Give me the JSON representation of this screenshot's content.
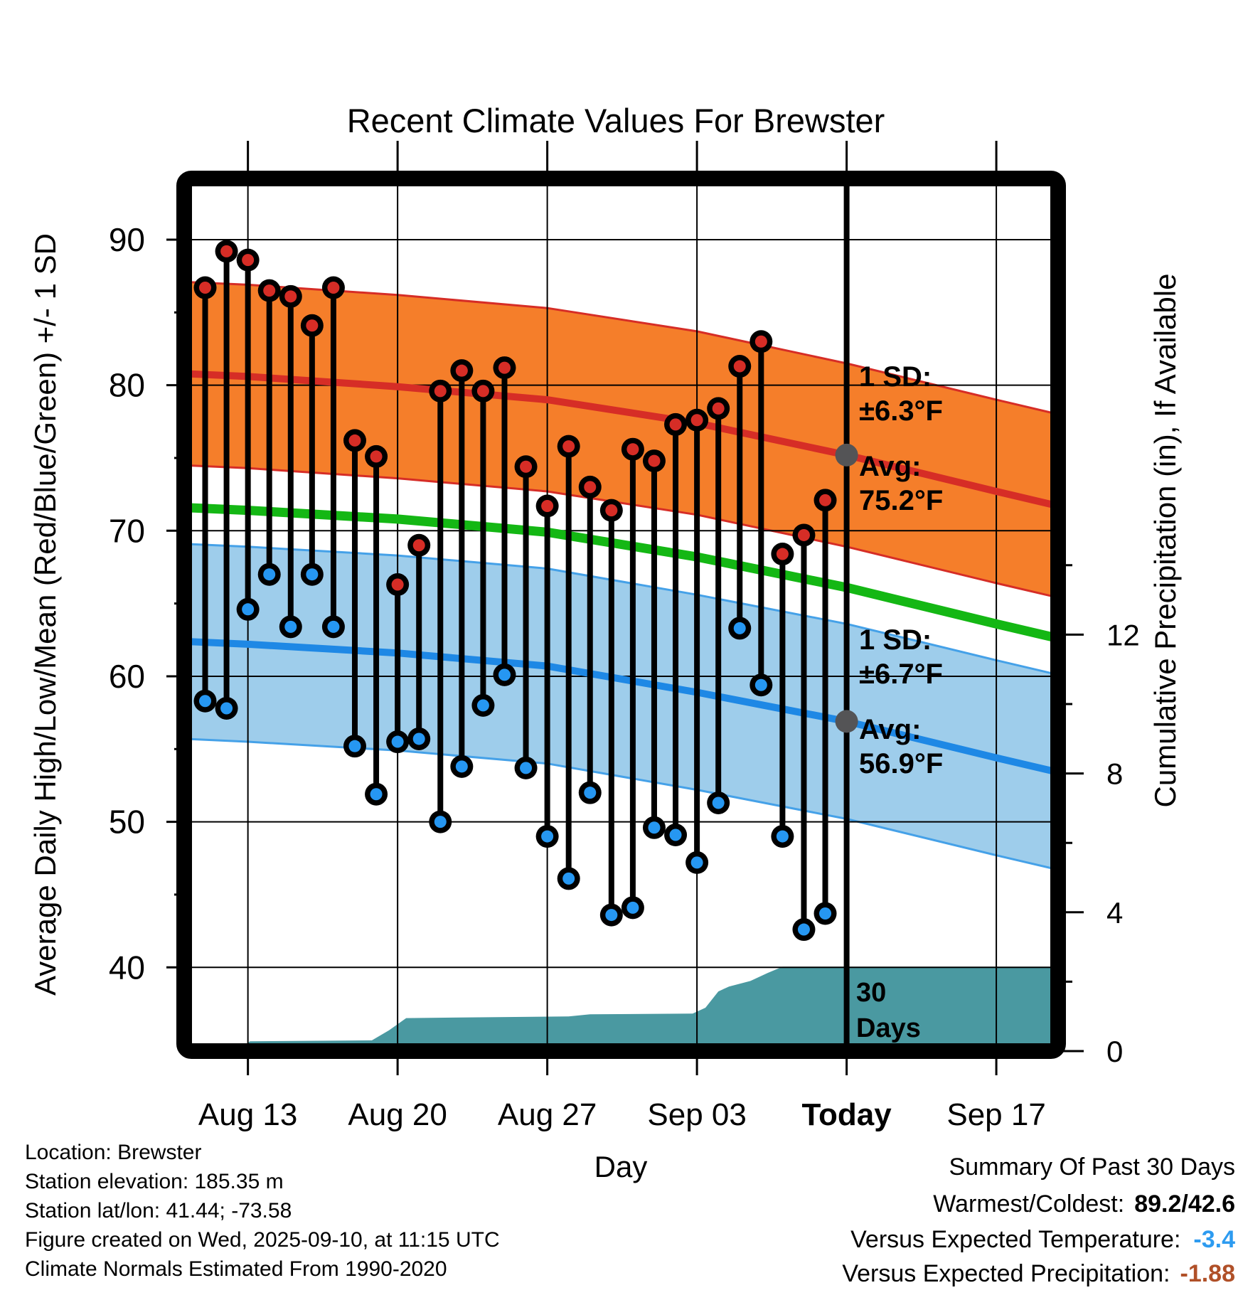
{
  "title": "Recent Climate Values For Brewster",
  "axes": {
    "x_label": "Day",
    "y_left_label": "Average Daily High/Low/Mean (Red/Blue/Green) +/- 1 SD",
    "y_right_label": "Cumulative Precipitation (in), If Available",
    "y_left_major_ticks": [
      90,
      80,
      70,
      60,
      50,
      40
    ],
    "y_left_minor_ticks": [
      85,
      75,
      65,
      55,
      45
    ],
    "y_right_major_ticks": [
      12,
      8,
      4,
      0
    ],
    "y_right_minor_ticks": [
      14,
      10,
      6,
      2
    ],
    "x_ticks": [
      {
        "label": "Aug 13",
        "day": 2,
        "bold": false
      },
      {
        "label": "Aug 20",
        "day": 9,
        "bold": false
      },
      {
        "label": "Aug 27",
        "day": 16,
        "bold": false
      },
      {
        "label": "Sep 03",
        "day": 23,
        "bold": false
      },
      {
        "label": "Today",
        "day": 30,
        "bold": true
      },
      {
        "label": "Sep 17",
        "day": 37,
        "bold": false
      }
    ]
  },
  "chart_data": {
    "type": "line",
    "temp_unit": "F",
    "temp_axis_range": [
      34.5,
      93.7
    ],
    "precip_axis_range": [
      0,
      24.9
    ],
    "daily": {
      "dates": [
        "Aug 11",
        "Aug 12",
        "Aug 13",
        "Aug 14",
        "Aug 15",
        "Aug 16",
        "Aug 17",
        "Aug 18",
        "Aug 19",
        "Aug 20",
        "Aug 21",
        "Aug 22",
        "Aug 23",
        "Aug 24",
        "Aug 25",
        "Aug 26",
        "Aug 27",
        "Aug 28",
        "Aug 29",
        "Aug 30",
        "Aug 31",
        "Sep 01",
        "Sep 02",
        "Sep 03",
        "Sep 04",
        "Sep 05",
        "Sep 06",
        "Sep 07",
        "Sep 08",
        "Sep 09"
      ],
      "highs": [
        86.7,
        89.2,
        88.6,
        86.5,
        86.1,
        84.1,
        86.7,
        76.2,
        75.1,
        66.3,
        69.0,
        79.6,
        81.0,
        79.6,
        81.2,
        74.4,
        71.7,
        75.8,
        73.0,
        71.4,
        75.6,
        74.8,
        77.3,
        77.6,
        78.4,
        81.3,
        83.0,
        68.4,
        69.7,
        72.1
      ],
      "lows": [
        58.3,
        57.8,
        64.6,
        67.0,
        63.4,
        67.0,
        63.4,
        55.2,
        51.9,
        55.5,
        55.7,
        50.0,
        53.8,
        58.0,
        60.1,
        53.7,
        49.0,
        46.1,
        52.0,
        43.6,
        44.1,
        49.6,
        49.1,
        47.2,
        51.3,
        63.3,
        59.4,
        49.0,
        42.6,
        43.7
      ]
    },
    "climatology": {
      "high_sd": 6.3,
      "low_sd": 6.7,
      "high_mean": [
        [
          -1,
          80.8
        ],
        [
          2,
          80.6
        ],
        [
          9,
          79.9
        ],
        [
          16,
          79.0
        ],
        [
          23,
          77.4
        ],
        [
          30,
          75.2
        ],
        [
          37,
          72.7
        ],
        [
          39.9,
          71.7
        ]
      ],
      "low_mean": [
        [
          -1,
          62.4
        ],
        [
          2,
          62.2
        ],
        [
          9,
          61.6
        ],
        [
          16,
          60.7
        ],
        [
          23,
          58.9
        ],
        [
          30,
          56.9
        ],
        [
          37,
          54.4
        ],
        [
          39.9,
          53.4
        ]
      ],
      "mean_mean": [
        [
          -1,
          71.6
        ],
        [
          2,
          71.4
        ],
        [
          9,
          70.8
        ],
        [
          16,
          69.9
        ],
        [
          23,
          68.2
        ],
        [
          30,
          66.1
        ],
        [
          37,
          63.6
        ],
        [
          39.9,
          62.6
        ]
      ]
    },
    "cumulative_precip_in": [
      [
        -0.6,
        0.05
      ],
      [
        1.6,
        0.05
      ],
      [
        2.1,
        0.28
      ],
      [
        7.8,
        0.31
      ],
      [
        8.6,
        0.6
      ],
      [
        9.4,
        0.95
      ],
      [
        17,
        1.0
      ],
      [
        18,
        1.06
      ],
      [
        22.8,
        1.08
      ],
      [
        23.4,
        1.25
      ],
      [
        24,
        1.72
      ],
      [
        24.5,
        1.86
      ],
      [
        25.5,
        2.02
      ],
      [
        26.3,
        2.25
      ],
      [
        27,
        2.43
      ],
      [
        40,
        2.43
      ]
    ],
    "today_day": 30,
    "today_high_avg": 75.2,
    "today_low_avg": 56.9
  },
  "annotations": {
    "high_sd_line1": "1 SD:",
    "high_sd_line2": "±6.3°F",
    "high_avg_line1": "Avg:",
    "high_avg_line2": "75.2°F",
    "low_sd_line1": "1 SD:",
    "low_sd_line2": "±6.7°F",
    "low_avg_line1": "Avg:",
    "low_avg_line2": "56.9°F",
    "period_line1": "30",
    "period_line2": "Days"
  },
  "summary": {
    "title": "Summary Of Past 30 Days",
    "warmest_coldest_label": "Warmest/Coldest:",
    "warmest_coldest_value": "89.2/42.6",
    "vs_temp_label": "Versus Expected Temperature:",
    "vs_temp_value": "-3.4",
    "vs_precip_label": "Versus Expected Precipitation:",
    "vs_precip_value": "-1.88"
  },
  "footer_left": {
    "lines": [
      "Location: Brewster",
      "Station elevation: 185.35 m",
      "Station lat/lon: 41.44; -73.58",
      "Figure created on Wed, 2025-09-10, at 11:15 UTC",
      "Climate Normals Estimated From 1990-2020"
    ]
  },
  "colors": {
    "high_band": "#F57E2A",
    "high_line": "#D62D26",
    "high_dot": "#D62D26",
    "mean_line": "#14B714",
    "low_band": "#9ECDEB",
    "low_band_edge": "#45A1E8",
    "low_line": "#1E88E5",
    "low_dot": "#2697F2",
    "precip_fill": "#4A99A1",
    "annotation_gray": "#57585A",
    "today_marker": "#545456",
    "vs_temp_value_color": "#2D9BF0",
    "vs_precip_value_color": "#B05028"
  }
}
